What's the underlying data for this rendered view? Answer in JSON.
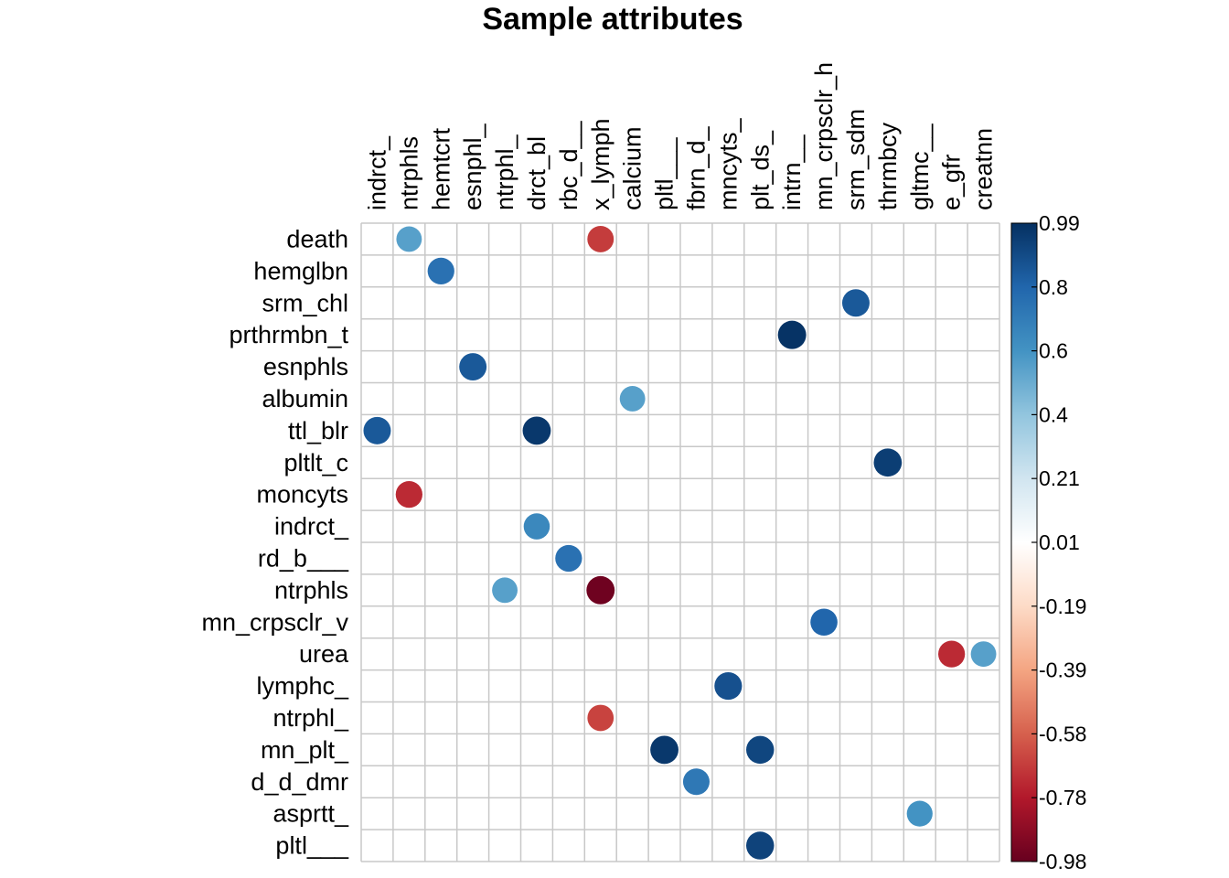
{
  "chart_data": {
    "type": "heatmap",
    "title": "Sample attributes",
    "columns": [
      "indrct_",
      "ntrphls",
      "hemtcrt",
      "esnphl_",
      "ntrphl_",
      "drct_bl",
      "rbc_d__",
      "x_lymph",
      "calcium",
      "pltl___",
      "fbrn_d_",
      "mncyts_",
      "plt_ds_",
      "intrn__",
      "mn_crpsclr_h",
      "srm_sdm",
      "thrmbcy",
      "gltmc__",
      "e_gfr",
      "creatnn"
    ],
    "rows": [
      "death",
      "hemglbn",
      "srm_chl",
      "prthrmbn_t",
      "esnphls",
      "albumin",
      "ttl_blr",
      "pltlt_c",
      "moncyts",
      "indrct_",
      "rd_b___",
      "ntrphls",
      "mn_crpsclr_v",
      "urea",
      "lymphc_",
      "ntrphl_",
      "mn_plt_",
      "d_d_dmr",
      "asprtt_",
      "pltl___"
    ],
    "cells": [
      {
        "row": "death",
        "col": "ntrphls",
        "value": 0.55
      },
      {
        "row": "death",
        "col": "x_lymph",
        "value": -0.7
      },
      {
        "row": "hemglbn",
        "col": "hemtcrt",
        "value": 0.75
      },
      {
        "row": "srm_chl",
        "col": "srm_sdm",
        "value": 0.85
      },
      {
        "row": "prthrmbn_t",
        "col": "intrn__",
        "value": 0.99
      },
      {
        "row": "esnphls",
        "col": "esnphl_",
        "value": 0.85
      },
      {
        "row": "albumin",
        "col": "calcium",
        "value": 0.55
      },
      {
        "row": "ttl_blr",
        "col": "indrct_",
        "value": 0.85
      },
      {
        "row": "ttl_blr",
        "col": "drct_bl",
        "value": 0.97
      },
      {
        "row": "pltlt_c",
        "col": "thrmbcy",
        "value": 0.95
      },
      {
        "row": "moncyts",
        "col": "ntrphls",
        "value": -0.75
      },
      {
        "row": "indrct_",
        "col": "drct_bl",
        "value": 0.65
      },
      {
        "row": "rd_b___",
        "col": "rbc_d__",
        "value": 0.75
      },
      {
        "row": "ntrphls",
        "col": "ntrphl_",
        "value": 0.55
      },
      {
        "row": "ntrphls",
        "col": "x_lymph",
        "value": -0.98
      },
      {
        "row": "mn_crpsclr_v",
        "col": "mn_crpsclr_h",
        "value": 0.8
      },
      {
        "row": "urea",
        "col": "e_gfr",
        "value": -0.75
      },
      {
        "row": "urea",
        "col": "creatnn",
        "value": 0.55
      },
      {
        "row": "lymphc_",
        "col": "mncyts_",
        "value": 0.88
      },
      {
        "row": "ntrphl_",
        "col": "x_lymph",
        "value": -0.68
      },
      {
        "row": "mn_plt_",
        "col": "pltl___",
        "value": 0.97
      },
      {
        "row": "mn_plt_",
        "col": "plt_ds_",
        "value": 0.92
      },
      {
        "row": "d_d_dmr",
        "col": "fbrn_d_",
        "value": 0.72
      },
      {
        "row": "asprtt_",
        "col": "gltmc__",
        "value": 0.6
      },
      {
        "row": "pltl___",
        "col": "plt_ds_",
        "value": 0.93
      }
    ],
    "colorbar": {
      "min": -0.98,
      "max": 0.99,
      "ticks": [
        "0.99",
        "0.8",
        "0.6",
        "0.4",
        "0.21",
        "0.01",
        "-0.19",
        "-0.39",
        "-0.58",
        "-0.78",
        "-0.98"
      ]
    },
    "colors": [
      "#67001F",
      "#B2182B",
      "#D6604D",
      "#F4A582",
      "#FDDBC7",
      "#FFFFFF",
      "#D1E5F0",
      "#92C5DE",
      "#4393C3",
      "#2166AC",
      "#053061"
    ],
    "grid": true,
    "legend": "right"
  }
}
